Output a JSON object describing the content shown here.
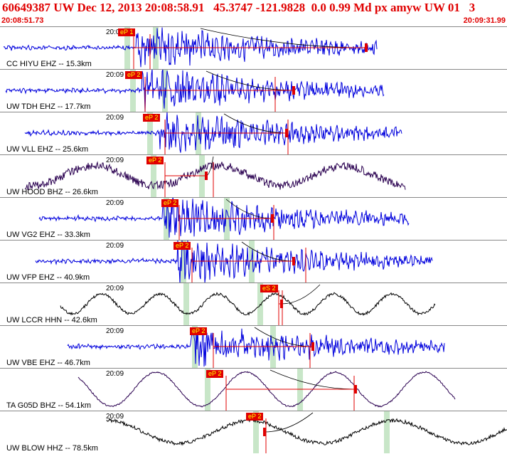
{
  "header": {
    "title": "60649387 UW Dec 12, 2013 20:08:58.91   45.3747 -121.9828  0.0 0.99 Md px amyw UW 01   3",
    "start_time": "20:08:51.73",
    "end_time": "20:09:31.99"
  },
  "colors": {
    "accent": "#e00000",
    "wave_blue": "#0000dd",
    "wave_purple": "#2a0050",
    "wave_black": "#000000",
    "green_band": "#c8e6c8"
  },
  "panels": [
    {
      "station": "CC HIYU EHZ -- 15.3km",
      "tick": "20:09",
      "pick": "eP 1",
      "color": "#0000dd"
    },
    {
      "station": "UW TDH EHZ -- 17.7km",
      "tick": "20:09",
      "pick": "eP 2",
      "color": "#0000dd"
    },
    {
      "station": "UW VLL EHZ -- 25.6km",
      "tick": "20:09",
      "pick": "eP 2",
      "color": "#0000dd"
    },
    {
      "station": "UW HOOD BHZ -- 26.6km",
      "tick": "20:09",
      "pick": "eP 2",
      "color": "#2a0050"
    },
    {
      "station": "UW VG2 EHZ -- 33.3km",
      "tick": "20:09",
      "pick": "eP 2",
      "color": "#0000dd"
    },
    {
      "station": "UW VFP EHZ -- 40.9km",
      "tick": "20:09",
      "pick": "eP 2",
      "color": "#0000dd"
    },
    {
      "station": "UW LCCR HHN -- 42.6km",
      "tick": "20:09",
      "pick": "eS 2",
      "color": "#000000"
    },
    {
      "station": "UW VBE EHZ -- 46.7km",
      "tick": "20:09",
      "pick": "eP 2",
      "color": "#0000dd"
    },
    {
      "station": "TA G05D BHZ -- 54.1km",
      "tick": "20:09",
      "pick": "eP 2",
      "color": "#2a0050"
    },
    {
      "station": "UW BLOW HHZ -- 78.5km",
      "tick": "20:09",
      "pick": "eP 2",
      "color": "#000000"
    }
  ]
}
